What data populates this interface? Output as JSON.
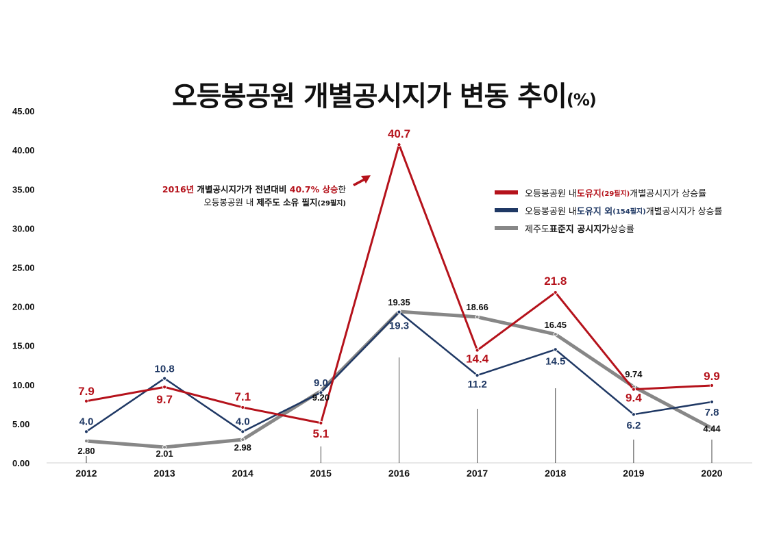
{
  "title": {
    "main": "오등봉공원 개별공시지가 변동 추이",
    "unit": "(%)"
  },
  "annotation": {
    "line1": {
      "year": "2016년",
      "text1": " 개별공시지가가 전년대비 ",
      "value": "40.7%",
      "text2": " 상승",
      "text3": "한"
    },
    "line2": {
      "text1": "오등봉공원 내 ",
      "bold": "제주도 소유 필지",
      "small": "(29필지)"
    }
  },
  "legend": {
    "items": [
      {
        "prefix": "오등봉공원 내 ",
        "highlight": "도유지",
        "small": "(29필지)",
        "suffix": " 개별공시지가 상승률"
      },
      {
        "prefix": "오등봉공원 내 ",
        "highlight": "도유지 외",
        "small": "(154필지)",
        "suffix": " 개별공시지가 상승률"
      },
      {
        "prefix": "제주도 ",
        "bold": "표준지 공시지가",
        "suffix": " 상승률"
      }
    ]
  },
  "colors": {
    "red": "#b5121b",
    "navy": "#1f3864",
    "gray": "#878787"
  },
  "chart_data": {
    "type": "line",
    "title": "오등봉공원 개별공시지가 변동 추이(%)",
    "x": [
      "2012",
      "2013",
      "2014",
      "2015",
      "2016",
      "2017",
      "2018",
      "2019",
      "2020"
    ],
    "ylim": [
      0,
      45
    ],
    "yticks": [
      "0.00",
      "5.00",
      "10.00",
      "15.00",
      "20.00",
      "25.00",
      "30.00",
      "35.00",
      "40.00",
      "45.00"
    ],
    "grid": false,
    "legend_position": "right",
    "series": [
      {
        "name": "오등봉공원 내 도유지(29필지) 개별공시지가 상승률",
        "color": "#b5121b",
        "values": [
          7.9,
          9.7,
          7.1,
          5.1,
          40.7,
          14.4,
          21.8,
          9.4,
          9.9
        ],
        "labels": [
          "7.9",
          "9.7",
          "7.1",
          "5.1",
          "40.7",
          "14.4",
          "21.8",
          "9.4",
          "9.9"
        ]
      },
      {
        "name": "오등봉공원 내 도유지 외(154필지) 개별공시지가 상승률",
        "color": "#1f3864",
        "values": [
          4.0,
          10.8,
          4.0,
          9.0,
          19.3,
          11.2,
          14.5,
          6.2,
          7.8
        ],
        "labels": [
          "4.0",
          "10.8",
          "4.0",
          "9.0",
          "19.3",
          "11.2",
          "14.5",
          "6.2",
          "7.8"
        ]
      },
      {
        "name": "제주도 표준지 공시지가 상승률",
        "color": "#878787",
        "values": [
          2.8,
          2.01,
          2.98,
          9.2,
          19.35,
          18.66,
          16.45,
          9.74,
          4.44
        ],
        "labels": [
          "2.80",
          "2.01",
          "2.98",
          "9.20",
          "19.35",
          "18.66",
          "16.45",
          "9.74",
          "4.44"
        ]
      }
    ]
  }
}
